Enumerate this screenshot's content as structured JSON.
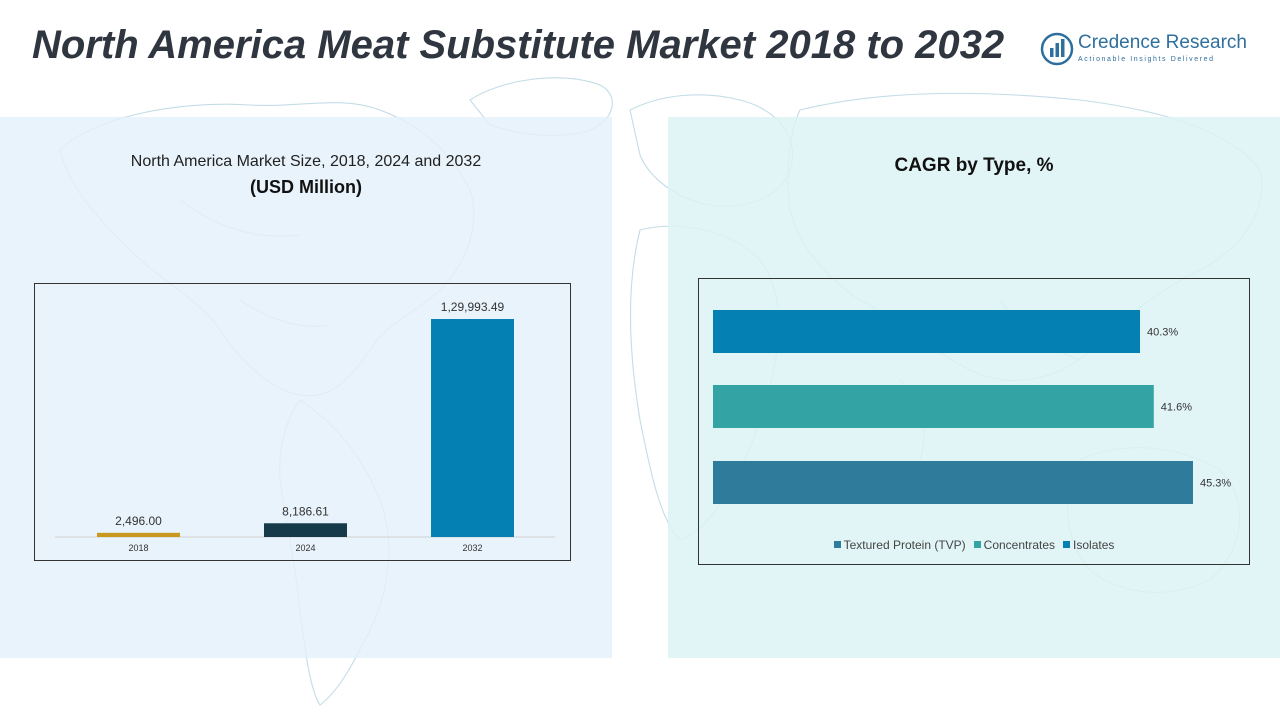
{
  "header": {
    "title": "North America Meat Substitute Market 2018 to 2032"
  },
  "logo": {
    "name": "Credence Research",
    "tagline": "Actionable Insights Delivered"
  },
  "left_panel": {
    "subtitle": "North America Market Size, 2018, 2024 and 2032",
    "unit": "(USD Million)"
  },
  "right_panel": {
    "title": "CAGR by Type, %"
  },
  "chart_data": [
    {
      "type": "bar",
      "title": "North America Market Size, 2018, 2024 and 2032",
      "ylabel": "(USD Million)",
      "categories": [
        "2018",
        "2024",
        "2032"
      ],
      "values": [
        2496.0,
        8186.61,
        129993.49
      ],
      "value_labels": [
        "2,496.00",
        "8,186.61",
        "1,29,993.49"
      ],
      "colors": [
        "#c9981e",
        "#163a4a",
        "#0580b2"
      ],
      "ylim": [
        0,
        129993.49
      ],
      "grid": false
    },
    {
      "type": "bar",
      "orientation": "horizontal",
      "title": "CAGR by Type, %",
      "categories": [
        "Isolates",
        "Concentrates",
        "Textured Protein (TVP)"
      ],
      "values": [
        40.3,
        41.6,
        45.3
      ],
      "value_labels": [
        "40.3%",
        "41.6%",
        "45.3%"
      ],
      "colors": [
        "#0580b2",
        "#33a3a3",
        "#2e7b9b"
      ],
      "legend": {
        "placement": "bottom",
        "entries": [
          {
            "label": "Textured Protein (TVP)",
            "color": "#2e7b9b"
          },
          {
            "label": "Concentrates",
            "color": "#33a3a3"
          },
          {
            "label": "Isolates",
            "color": "#0580b2"
          }
        ]
      },
      "grid": false
    }
  ]
}
